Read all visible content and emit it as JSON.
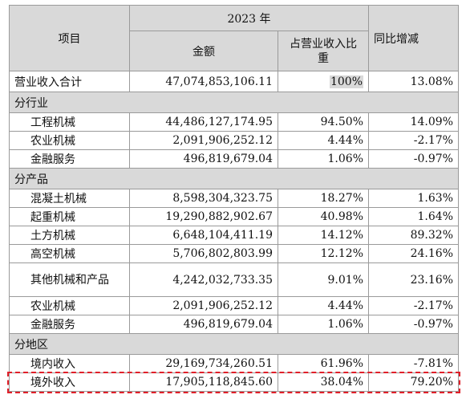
{
  "header": {
    "item": "项目",
    "year": "2023 年",
    "amount": "金额",
    "share": "占营业收入比重",
    "yoy": "同比增减"
  },
  "total": {
    "label": "营业收入合计",
    "amount": "47,074,853,106.11",
    "share": "100%",
    "yoy": "13.08%"
  },
  "sections": [
    {
      "title": "分行业",
      "rows": [
        {
          "label": "工程机械",
          "amount": "44,486,127,174.95",
          "share": "94.50%",
          "yoy": "14.09%"
        },
        {
          "label": "农业机械",
          "amount": "2,091,906,252.12",
          "share": "4.44%",
          "yoy": "-2.17%"
        },
        {
          "label": "金融服务",
          "amount": "496,819,679.04",
          "share": "1.06%",
          "yoy": "-0.97%"
        }
      ]
    },
    {
      "title": "分产品",
      "rows": [
        {
          "label": "混凝土机械",
          "amount": "8,598,304,323.75",
          "share": "18.27%",
          "yoy": "1.63%"
        },
        {
          "label": "起重机械",
          "amount": "19,290,882,902.67",
          "share": "40.98%",
          "yoy": "1.64%"
        },
        {
          "label": "土方机械",
          "amount": "6,648,104,411.19",
          "share": "14.12%",
          "yoy": "89.32%"
        },
        {
          "label": "高空机械",
          "amount": "5,706,802,803.99",
          "share": "12.12%",
          "yoy": "24.16%"
        },
        {
          "label": "其他机械和产品",
          "amount": "4,242,032,733.35",
          "share": "9.01%",
          "yoy": "23.16%"
        },
        {
          "label": "农业机械",
          "amount": "2,091,906,252.12",
          "share": "4.44%",
          "yoy": "-2.17%"
        },
        {
          "label": "金融服务",
          "amount": "496,819,679.04",
          "share": "1.06%",
          "yoy": "-0.97%"
        }
      ]
    },
    {
      "title": "分地区",
      "rows": [
        {
          "label": "境内收入",
          "amount": "29,169,734,260.51",
          "share": "61.96%",
          "yoy": "-7.81%"
        },
        {
          "label": "境外收入",
          "amount": "17,905,118,845.60",
          "share": "38.04%",
          "yoy": "79.20%"
        }
      ]
    }
  ],
  "colors": {
    "header_bg": "#d9d9d9",
    "highlight_border": "#e0202a",
    "grid": "#9a9a9a"
  }
}
